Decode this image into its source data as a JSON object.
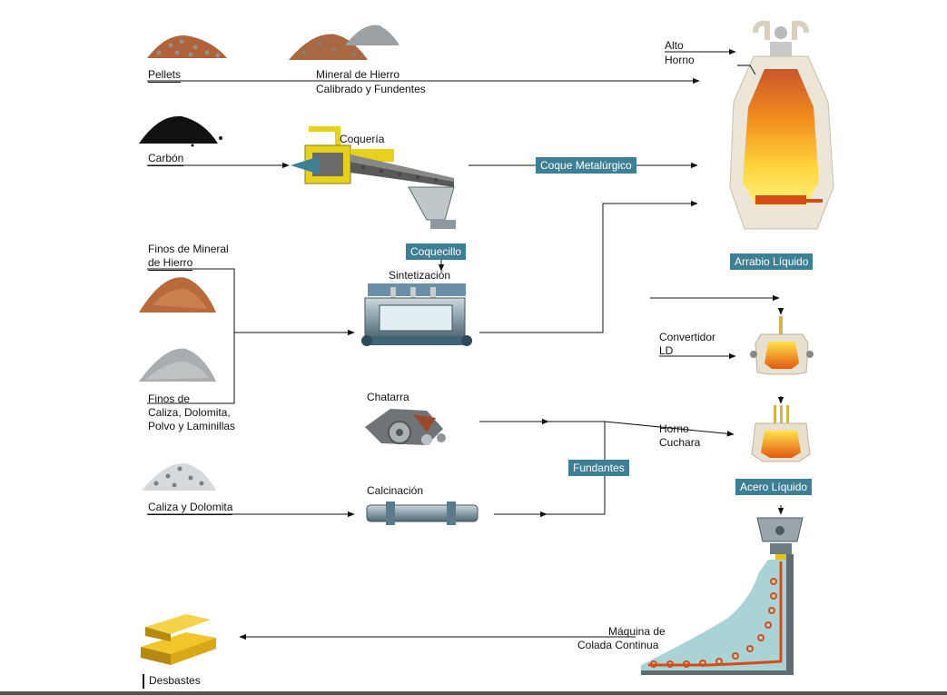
{
  "inputs": {
    "pellets": "Pellets",
    "mineral_line1": "Mineral de Hierro",
    "mineral_line2": "Calibrado y Fundentes",
    "carbon": "Carbón",
    "finos_mineral_line1": "Finos de Mineral",
    "finos_mineral_line2": "de Hierro",
    "finos_caliza_line1": "Finos de",
    "finos_caliza_line2": "Caliza, Dolomita,",
    "finos_caliza_line3": "Polvo y Laminillas",
    "caliza_dolomita": "Caliza y Dolomita"
  },
  "processes": {
    "coqueria": "Coquería",
    "sintetizacion": "Sintetización",
    "chatarra": "Chatarra",
    "calcinacion": "Calcinación",
    "alto_horno_line1": "Alto",
    "alto_horno_line2": "Horno",
    "convertidor_line1": "Convertidor",
    "convertidor_line2": "LD",
    "horno_cuchara_line1": "Horno",
    "horno_cuchara_line2": "Cuchara",
    "maquina_line1": "Máquina de",
    "maquina_line2": "Colada Continua",
    "desbastes": "Desbastes"
  },
  "tags": {
    "coque_metalurgico": "Coque Metalúrgico",
    "coquecillo": "Coquecillo",
    "arrabio_liquido": "Arrabio Líquido",
    "fundantes": "Fundantes",
    "acero_liquido": "Acero Líquido"
  },
  "colors": {
    "tag_bg": "#3d7f95",
    "furnace_hot": "#f5a000",
    "furnace_shell": "#e8e0cf",
    "machine_blue": "#4e7f9a",
    "line": "#111111"
  }
}
